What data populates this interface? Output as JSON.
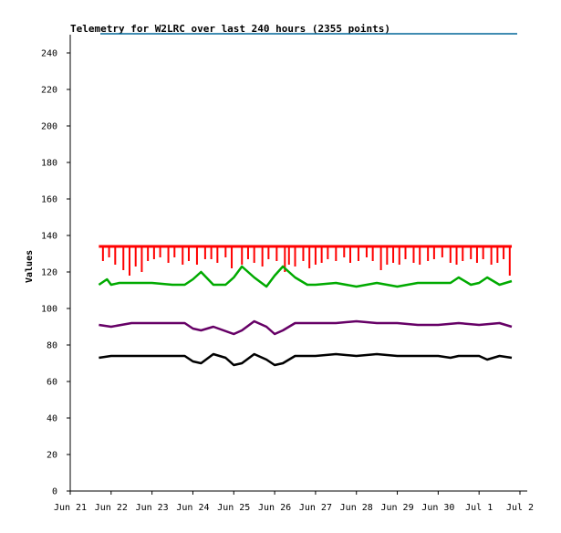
{
  "chart_data": {
    "type": "line",
    "title": "Telemetry for W2LRC over last 240 hours (2355 points)",
    "xlabel": "",
    "ylabel": "Values",
    "ylim": [
      0,
      250
    ],
    "y_ticks": [
      0,
      20,
      40,
      60,
      80,
      100,
      120,
      140,
      160,
      180,
      200,
      220,
      240
    ],
    "x_ticks": [
      "Jun 21",
      "Jun 22",
      "Jun 23",
      "Jun 24",
      "Jun 25",
      "Jun 26",
      "Jun 27",
      "Jun 28",
      "Jun 29",
      "Jun 30",
      "Jul 1",
      "Jul 2"
    ],
    "x_range_days": [
      0,
      11
    ],
    "grid": false,
    "legend": "none",
    "colors": {
      "series1": "#ff0000",
      "series2": "#00aa00",
      "series3": "#660066",
      "series4": "#000000",
      "top_line": "#006699"
    },
    "series": [
      {
        "x": [
          0.7,
          1.0,
          1.5,
          2.0,
          2.5,
          3.0,
          3.5,
          4.0,
          4.5,
          5.0,
          5.5,
          6.0,
          6.5,
          7.0,
          7.5,
          8.0,
          8.5,
          9.0,
          9.5,
          10.0,
          10.5,
          10.8
        ],
        "values": [
          134,
          134,
          134,
          134,
          134,
          134,
          134,
          134,
          134,
          134,
          134,
          134,
          134,
          134,
          134,
          134,
          134,
          134,
          134,
          134,
          134,
          134
        ],
        "dips": [
          [
            0.8,
            126
          ],
          [
            0.95,
            128
          ],
          [
            1.1,
            124
          ],
          [
            1.3,
            121
          ],
          [
            1.45,
            118
          ],
          [
            1.6,
            123
          ],
          [
            1.75,
            120
          ],
          [
            1.9,
            126
          ],
          [
            2.05,
            127
          ],
          [
            2.2,
            128
          ],
          [
            2.4,
            125
          ],
          [
            2.55,
            128
          ],
          [
            2.75,
            124
          ],
          [
            2.9,
            126
          ],
          [
            3.1,
            124
          ],
          [
            3.3,
            127
          ],
          [
            3.45,
            127
          ],
          [
            3.6,
            125
          ],
          [
            3.8,
            128
          ],
          [
            3.95,
            122
          ],
          [
            4.2,
            124
          ],
          [
            4.35,
            127
          ],
          [
            4.5,
            125
          ],
          [
            4.7,
            123
          ],
          [
            4.85,
            127
          ],
          [
            5.05,
            126
          ],
          [
            5.25,
            120
          ],
          [
            5.35,
            124
          ],
          [
            5.5,
            123
          ],
          [
            5.7,
            126
          ],
          [
            5.85,
            122
          ],
          [
            6.0,
            124
          ],
          [
            6.15,
            125
          ],
          [
            6.3,
            127
          ],
          [
            6.5,
            126
          ],
          [
            6.7,
            128
          ],
          [
            6.85,
            125
          ],
          [
            7.05,
            126
          ],
          [
            7.25,
            128
          ],
          [
            7.4,
            126
          ],
          [
            7.6,
            121
          ],
          [
            7.75,
            124
          ],
          [
            7.9,
            125
          ],
          [
            8.05,
            124
          ],
          [
            8.2,
            127
          ],
          [
            8.4,
            125
          ],
          [
            8.55,
            124
          ],
          [
            8.75,
            126
          ],
          [
            8.9,
            127
          ],
          [
            9.1,
            128
          ],
          [
            9.3,
            125
          ],
          [
            9.45,
            124
          ],
          [
            9.6,
            126
          ],
          [
            9.8,
            127
          ],
          [
            9.95,
            125
          ],
          [
            10.1,
            127
          ],
          [
            10.3,
            124
          ],
          [
            10.45,
            125
          ],
          [
            10.6,
            127
          ],
          [
            10.75,
            118
          ]
        ]
      },
      {
        "x": [
          0.7,
          0.9,
          1.0,
          1.2,
          1.5,
          2.0,
          2.5,
          2.8,
          3.0,
          3.2,
          3.5,
          3.8,
          4.0,
          4.2,
          4.5,
          4.8,
          5.0,
          5.2,
          5.5,
          5.8,
          6.0,
          6.5,
          7.0,
          7.5,
          8.0,
          8.5,
          9.0,
          9.3,
          9.5,
          9.8,
          10.0,
          10.2,
          10.5,
          10.8
        ],
        "values": [
          113,
          116,
          113,
          114,
          114,
          114,
          113,
          113,
          116,
          120,
          113,
          113,
          117,
          123,
          117,
          112,
          118,
          123,
          117,
          113,
          113,
          114,
          112,
          114,
          112,
          114,
          114,
          114,
          117,
          113,
          114,
          117,
          113,
          115
        ]
      },
      {
        "x": [
          0.7,
          1.0,
          1.5,
          2.0,
          2.5,
          2.8,
          3.0,
          3.2,
          3.5,
          4.0,
          4.2,
          4.5,
          4.8,
          5.0,
          5.2,
          5.5,
          5.8,
          6.0,
          6.5,
          7.0,
          7.5,
          8.0,
          8.5,
          9.0,
          9.5,
          10.0,
          10.5,
          10.8
        ],
        "values": [
          91,
          90,
          92,
          92,
          92,
          92,
          89,
          88,
          90,
          86,
          88,
          93,
          90,
          86,
          88,
          92,
          92,
          92,
          92,
          93,
          92,
          92,
          91,
          91,
          92,
          91,
          92,
          90
        ]
      },
      {
        "x": [
          0.7,
          1.0,
          1.5,
          2.0,
          2.5,
          2.8,
          3.0,
          3.2,
          3.5,
          3.8,
          4.0,
          4.2,
          4.5,
          4.8,
          5.0,
          5.2,
          5.5,
          6.0,
          6.5,
          7.0,
          7.5,
          8.0,
          8.5,
          9.0,
          9.3,
          9.5,
          10.0,
          10.2,
          10.5,
          10.8
        ],
        "values": [
          73,
          74,
          74,
          74,
          74,
          74,
          71,
          70,
          75,
          73,
          69,
          70,
          75,
          72,
          69,
          70,
          74,
          74,
          75,
          74,
          75,
          74,
          74,
          74,
          73,
          74,
          74,
          72,
          74,
          73
        ]
      }
    ]
  }
}
